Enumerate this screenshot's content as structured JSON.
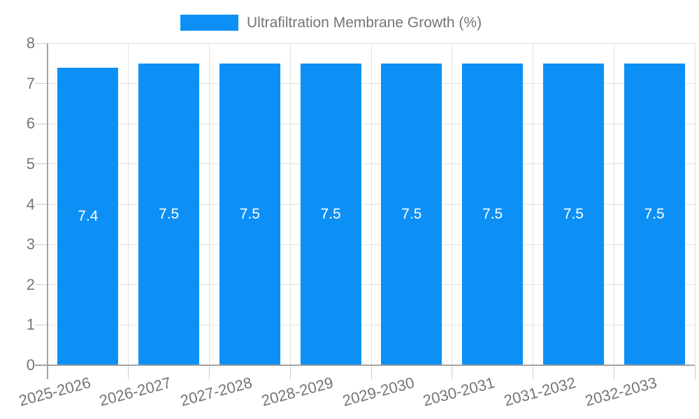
{
  "legend": {
    "label": "Ultrafiltration Membrane Growth (%)"
  },
  "chart_data": {
    "type": "bar",
    "title": "",
    "legend_entries": [
      "Ultrafiltration Membrane Growth (%)"
    ],
    "legend_position": "top-center",
    "categories": [
      "2025-2026",
      "2026-2027",
      "2027-2028",
      "2028-2029",
      "2029-2030",
      "2030-2031",
      "2031-2032",
      "2032-2033"
    ],
    "series": [
      {
        "name": "Ultrafiltration Membrane Growth (%)",
        "values": [
          7.4,
          7.5,
          7.5,
          7.5,
          7.5,
          7.5,
          7.5,
          7.5
        ]
      }
    ],
    "bar_value_labels": [
      "7.4",
      "7.5",
      "7.5",
      "7.5",
      "7.5",
      "7.5",
      "7.5",
      "7.5"
    ],
    "xlabel": "",
    "ylabel": "",
    "ylim": [
      0,
      8
    ],
    "ytick_labels": [
      "0",
      "1",
      "2",
      "3",
      "4",
      "5",
      "6",
      "7",
      "8"
    ],
    "grid": true,
    "colors": {
      "bar": "#0d90f5",
      "value_label": "#ffffff",
      "axis_text": "#757575",
      "axis_line": "#a3a3a3",
      "gridline": "#e2e2e2",
      "tick": "#cccccc",
      "background": "#ffffff"
    }
  }
}
